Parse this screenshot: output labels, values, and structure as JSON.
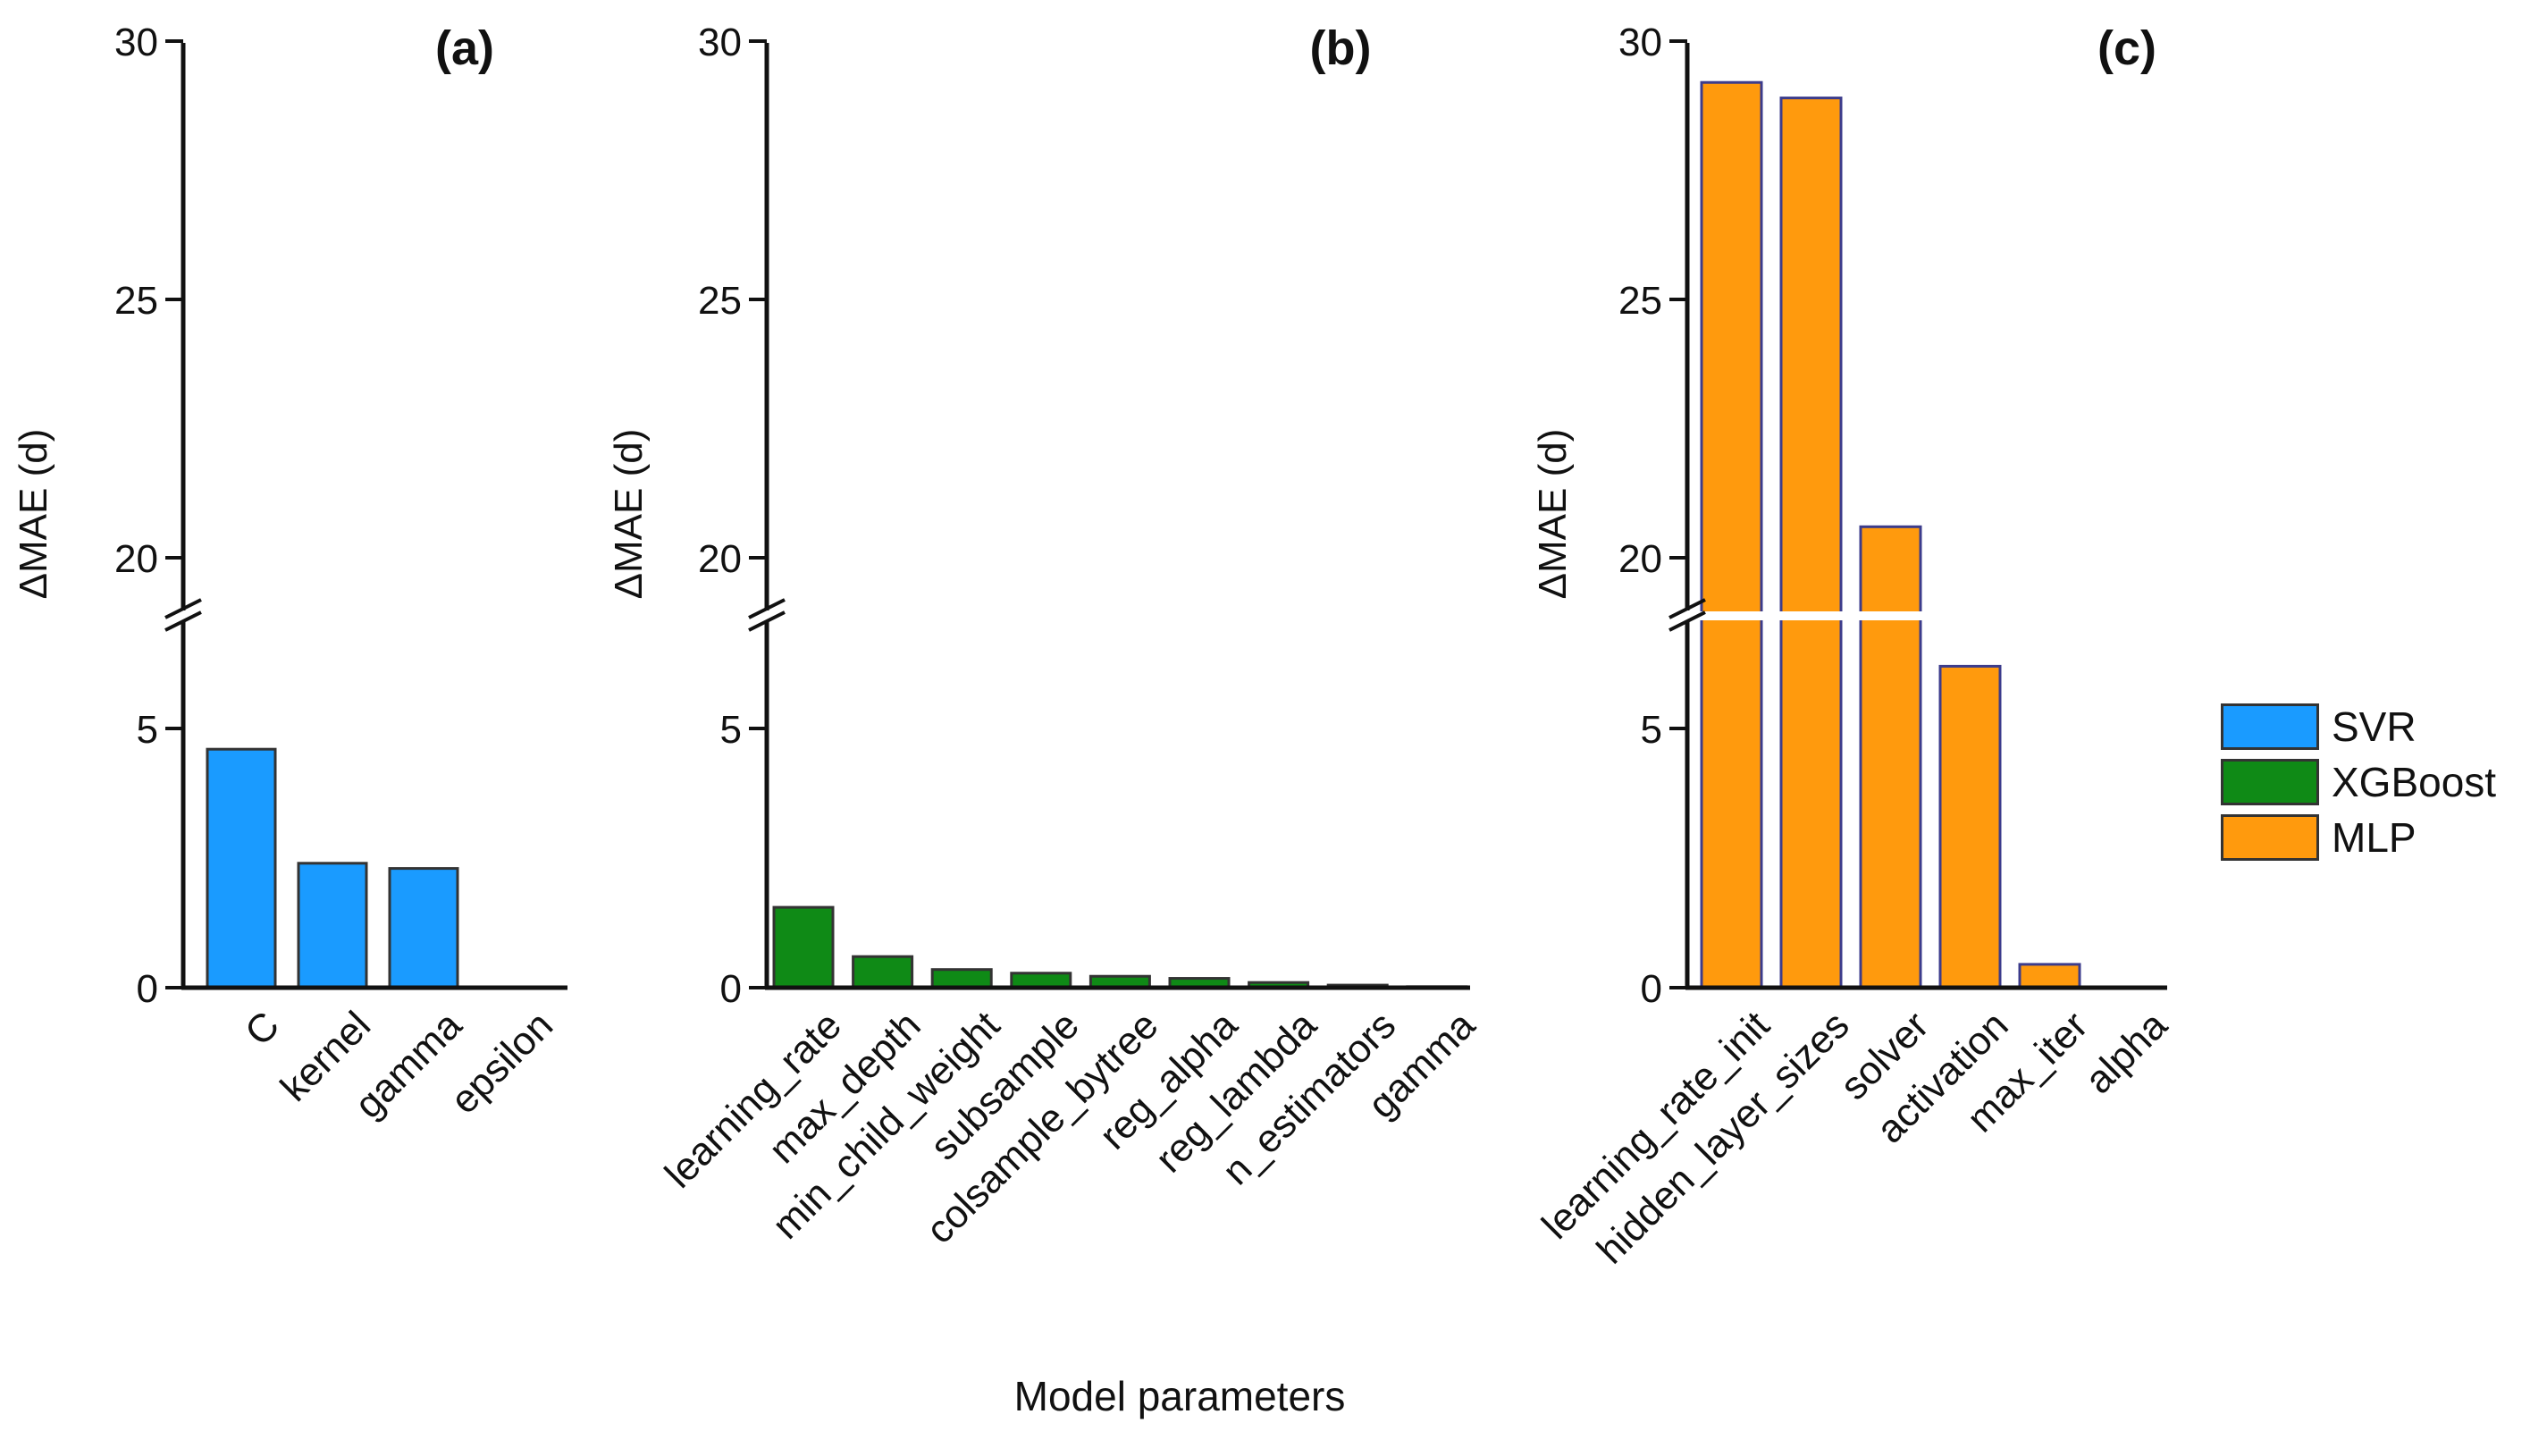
{
  "colors": {
    "svr": "#1a9bff",
    "xgboost": "#0f8a16",
    "mlp": "#ff9a0d",
    "mlp_border": "#3c3c8c",
    "bar_border": "#333333",
    "axis": "#111111"
  },
  "xlabel": "Model parameters",
  "legend": [
    {
      "label": "SVR",
      "color": "#1a9bff"
    },
    {
      "label": "XGBoost",
      "color": "#0f8a16"
    },
    {
      "label": "MLP",
      "color": "#ff9a0d"
    }
  ],
  "chart_data": [
    {
      "type": "bar",
      "panel": "(a)",
      "series_name": "SVR",
      "categories": [
        "C",
        "kernel",
        "gamma",
        "epsilon"
      ],
      "values": [
        4.6,
        2.4,
        2.3,
        0.0
      ],
      "ylabel": "ΔMAE (d)",
      "axis_break": {
        "lower": [
          0,
          7
        ],
        "upper": [
          19,
          30
        ]
      },
      "yticks": [
        0,
        5,
        20,
        25,
        30
      ]
    },
    {
      "type": "bar",
      "panel": "(b)",
      "series_name": "XGBoost",
      "categories": [
        "learning_rate",
        "max_depth",
        "min_child_weight",
        "subsample",
        "colsample_bytree",
        "reg_alpha",
        "reg_lambda",
        "n_estimators",
        "gamma"
      ],
      "values": [
        1.55,
        0.6,
        0.35,
        0.28,
        0.22,
        0.18,
        0.1,
        0.05,
        0.02
      ],
      "ylabel": "ΔMAE (d)",
      "axis_break": {
        "lower": [
          0,
          7
        ],
        "upper": [
          19,
          30
        ]
      },
      "yticks": [
        0,
        5,
        20,
        25,
        30
      ]
    },
    {
      "type": "bar",
      "panel": "(c)",
      "series_name": "MLP",
      "categories": [
        "learning_rate_init",
        "hidden_layer_sizes",
        "solver",
        "activation",
        "max_iter",
        "alpha"
      ],
      "values": [
        29.2,
        28.9,
        20.6,
        6.2,
        0.45,
        0.0
      ],
      "ylabel": "ΔMAE (d)",
      "axis_break": {
        "lower": [
          0,
          7
        ],
        "upper": [
          19,
          30
        ]
      },
      "yticks": [
        0,
        5,
        20,
        25,
        30
      ]
    }
  ]
}
